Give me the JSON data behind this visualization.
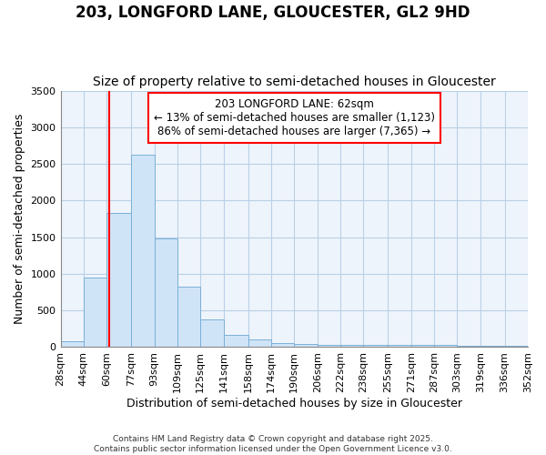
{
  "title1": "203, LONGFORD LANE, GLOUCESTER, GL2 9HD",
  "title2": "Size of property relative to semi-detached houses in Gloucester",
  "xlabel": "Distribution of semi-detached houses by size in Gloucester",
  "ylabel": "Number of semi-detached properties",
  "footnote": "Contains HM Land Registry data © Crown copyright and database right 2025.\nContains public sector information licensed under the Open Government Licence v3.0.",
  "bar_edges": [
    28,
    44,
    60,
    77,
    93,
    109,
    125,
    141,
    158,
    174,
    190,
    206,
    222,
    238,
    255,
    271,
    287,
    303,
    319,
    336,
    352
  ],
  "bar_heights": [
    75,
    950,
    1830,
    2630,
    1480,
    820,
    380,
    165,
    110,
    55,
    40,
    30,
    25,
    35,
    25,
    25,
    25,
    20,
    20,
    20
  ],
  "bar_color": "#d0e4f7",
  "bar_edge_color": "#7ab0d8",
  "grid_color": "#b8d0e8",
  "bg_color": "#ffffff",
  "plot_bg_color": "#eef4fb",
  "red_line_x": 62,
  "annotation_text": "203 LONGFORD LANE: 62sqm\n← 13% of semi-detached houses are smaller (1,123)\n86% of semi-detached houses are larger (7,365) →",
  "annotation_box_color": "white",
  "annotation_border_color": "red",
  "ylim": [
    0,
    3500
  ],
  "yticks": [
    0,
    500,
    1000,
    1500,
    2000,
    2500,
    3000,
    3500
  ],
  "title1_fontsize": 12,
  "title2_fontsize": 10,
  "xlabel_fontsize": 9,
  "ylabel_fontsize": 9,
  "tick_fontsize": 8,
  "annot_fontsize": 8.5
}
